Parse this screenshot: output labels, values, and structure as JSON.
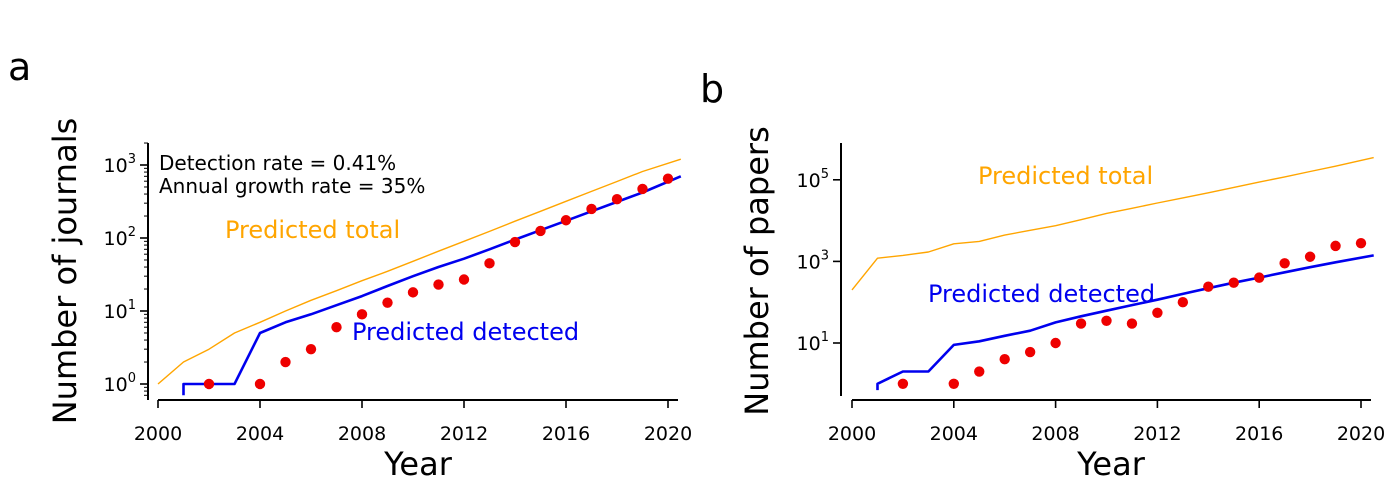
{
  "chart_data": [
    {
      "type": "line",
      "panel": "a",
      "xlabel": "Year",
      "ylabel": "Number of journals",
      "yscale": "log",
      "xlim": [
        2000,
        2020.5
      ],
      "ylim": [
        0.7,
        2000
      ],
      "xticks": [
        2000,
        2004,
        2008,
        2012,
        2016,
        2020
      ],
      "yticks": [
        {
          "value": 1,
          "base": "10",
          "exp": "0"
        },
        {
          "value": 10,
          "base": "10",
          "exp": "1"
        },
        {
          "value": 100,
          "base": "10",
          "exp": "2"
        },
        {
          "value": 1000,
          "base": "10",
          "exp": "3"
        }
      ],
      "annotations": [
        "Detection rate = 0.41%",
        "Annual growth rate = 35%"
      ],
      "series": [
        {
          "name": "Predicted total",
          "kind": "line",
          "color": "#FFA500",
          "x": [
            2000,
            2001,
            2002,
            2003,
            2004,
            2005,
            2006,
            2007,
            2008,
            2009,
            2010,
            2011,
            2012,
            2013,
            2014,
            2015,
            2016,
            2017,
            2018,
            2019,
            2020.5
          ],
          "y": [
            1,
            2,
            3,
            5,
            7,
            10,
            14,
            19,
            26,
            35,
            48,
            66,
            90,
            123,
            170,
            232,
            318,
            435,
            595,
            815,
            1200
          ]
        },
        {
          "name": "Predicted detected",
          "kind": "line",
          "color": "#0000EE",
          "x": [
            2001,
            2001,
            2002,
            2003,
            2004,
            2005,
            2006,
            2007,
            2008,
            2009,
            2010,
            2011,
            2012,
            2013,
            2014,
            2015,
            2016,
            2017,
            2018,
            2019,
            2020.5
          ],
          "y": [
            0.7,
            1,
            1,
            1,
            5,
            7,
            9,
            12,
            16,
            22,
            30,
            40,
            52,
            70,
            95,
            128,
            172,
            232,
            312,
            420,
            700
          ]
        },
        {
          "name": "",
          "kind": "scatter",
          "color": "#EE0000",
          "x": [
            2002,
            2004,
            2005,
            2006,
            2007,
            2008,
            2009,
            2010,
            2011,
            2012,
            2013,
            2014,
            2015,
            2016,
            2017,
            2018,
            2019,
            2020
          ],
          "y": [
            1,
            1,
            2,
            3,
            6,
            9,
            13,
            18,
            23,
            27,
            45,
            88,
            125,
            175,
            250,
            340,
            470,
            650
          ]
        }
      ]
    },
    {
      "type": "line",
      "panel": "b",
      "xlabel": "Year",
      "ylabel": "Number of papers",
      "yscale": "log",
      "xlim": [
        2000,
        2020.5
      ],
      "ylim": [
        0.7,
        800000
      ],
      "xticks": [
        2000,
        2004,
        2008,
        2012,
        2016,
        2020
      ],
      "yticks": [
        {
          "value": 10,
          "base": "10",
          "exp": "1"
        },
        {
          "value": 1000,
          "base": "10",
          "exp": "3"
        },
        {
          "value": 100000,
          "base": "10",
          "exp": "5"
        }
      ],
      "series": [
        {
          "name": "Predicted total",
          "kind": "line",
          "color": "#FFA500",
          "x": [
            2000,
            2001,
            2002,
            2003,
            2004,
            2005,
            2006,
            2007,
            2008,
            2009,
            2010,
            2011,
            2012,
            2013,
            2014,
            2015,
            2016,
            2017,
            2018,
            2019,
            2020.5
          ],
          "y": [
            200,
            1200,
            1400,
            1700,
            2700,
            3100,
            4400,
            5800,
            7500,
            10500,
            15000,
            20000,
            27000,
            36000,
            48000,
            65000,
            88000,
            118000,
            160000,
            215000,
            350000
          ]
        },
        {
          "name": "Predicted detected",
          "kind": "line",
          "color": "#0000EE",
          "x": [
            2001,
            2001,
            2002,
            2003,
            2004,
            2005,
            2006,
            2007,
            2008,
            2009,
            2010,
            2011,
            2012,
            2013,
            2014,
            2015,
            2016,
            2017,
            2018,
            2019,
            2020.5
          ],
          "y": [
            0.7,
            1,
            2,
            2,
            9,
            11,
            15,
            20,
            32,
            45,
            62,
            85,
            115,
            160,
            220,
            300,
            400,
            540,
            720,
            950,
            1400
          ]
        },
        {
          "name": "",
          "kind": "scatter",
          "color": "#EE0000",
          "x": [
            2002,
            2004,
            2005,
            2006,
            2007,
            2008,
            2009,
            2010,
            2011,
            2012,
            2013,
            2014,
            2015,
            2016,
            2017,
            2018,
            2019,
            2020
          ],
          "y": [
            1,
            1,
            2,
            4,
            6,
            10,
            30,
            35,
            30,
            55,
            100,
            240,
            300,
            400,
            900,
            1300,
            2400,
            2800
          ]
        }
      ]
    }
  ]
}
